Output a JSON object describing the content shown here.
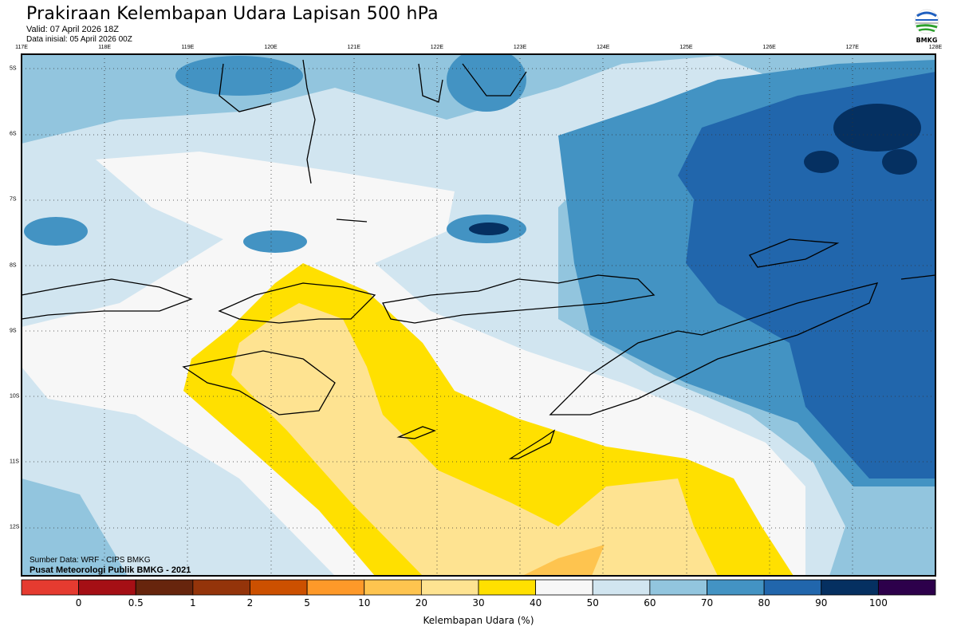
{
  "header": {
    "title": "Prakiraan Kelembapan Udara Lapisan 500 hPa",
    "valid": "Valid: 07 April 2026 18Z",
    "init": "Data inisial: 05 April 2026 00Z"
  },
  "logo": {
    "text": "BMKG"
  },
  "map": {
    "lon_labels": [
      "117E",
      "118E",
      "119E",
      "120E",
      "121E",
      "122E",
      "123E",
      "124E",
      "125E",
      "126E",
      "127E",
      "128E"
    ],
    "lat_labels": [
      "5S",
      "6S",
      "7S",
      "8S",
      "9S",
      "10S",
      "11S",
      "12S"
    ],
    "source": "Sumber Data: WRF - CIPS BMKG",
    "credit": "Pusat Meteorologi Publik BMKG - 2021"
  },
  "colorbar": {
    "title": "Kelembapan Udara (%)",
    "labels": [
      "0",
      "0.5",
      "1",
      "2",
      "5",
      "10",
      "20",
      "30",
      "40",
      "50",
      "60",
      "70",
      "80",
      "90",
      "100"
    ],
    "colors": [
      "#e53b30",
      "#a50f15",
      "#67250d",
      "#94340a",
      "#cc5000",
      "#fe9929",
      "#fec44f",
      "#fee391",
      "#ffe000",
      "#f7f7f7",
      "#d1e5f0",
      "#92c5de",
      "#4393c3",
      "#2166ac",
      "#053061",
      "#2d004b"
    ]
  }
}
